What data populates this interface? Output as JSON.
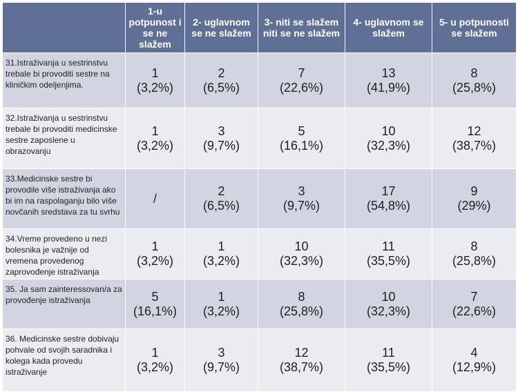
{
  "headers": [
    "",
    "1-u potpunost i se ne slažem",
    "2- uglavnom se ne slažem",
    "3- niti se slažem niti se ne slažem",
    "4- uglavnom se slažem",
    "5- u potpunosti se slažem"
  ],
  "rows": [
    {
      "question": "31.Istraživanja u sestrinstvu trebale bi provoditi sestre na kliničkim odeljenjima.",
      "cells": [
        {
          "count": "1",
          "pct": "(3,2%)"
        },
        {
          "count": "2",
          "pct": "(6,5%)"
        },
        {
          "count": "7",
          "pct": "(22,6%)"
        },
        {
          "count": "13",
          "pct": "(41,9%)"
        },
        {
          "count": "8",
          "pct": "(25,8%)"
        }
      ]
    },
    {
      "question": "32.Istraživanja u sestrinstvu trebale bi provoditi medicinske sestre zaposlene u obrazovanju",
      "cells": [
        {
          "count": "1",
          "pct": "(3,2%)"
        },
        {
          "count": "3",
          "pct": "(9,7%)"
        },
        {
          "count": "5",
          "pct": "(16,1%)"
        },
        {
          "count": "10",
          "pct": "(32,3%)"
        },
        {
          "count": "12",
          "pct": "(38,7%)"
        }
      ]
    },
    {
      "question": "33.Medicinske sestre bi provodile više istraživanja ako bi im na raspolaganju bilo više novčanih sredstava za tu svrhu",
      "cells": [
        {
          "count": "/",
          "pct": ""
        },
        {
          "count": "2",
          "pct": "(6,5%)"
        },
        {
          "count": "3",
          "pct": "(9,7%)"
        },
        {
          "count": "17",
          "pct": "(54,8%)"
        },
        {
          "count": "9",
          "pct": "(29%)"
        }
      ]
    },
    {
      "question": "34.Vreme provedeno u nezi bolesnika je važnije od vremena provedenog zaprovođenje istraživanja",
      "cells": [
        {
          "count": "1",
          "pct": "(3,2%)"
        },
        {
          "count": "1",
          "pct": "(3,2%)"
        },
        {
          "count": "10",
          "pct": "(32,3%)"
        },
        {
          "count": "11",
          "pct": "(35,5%)"
        },
        {
          "count": "8",
          "pct": "(25,8%)"
        }
      ]
    },
    {
      "question": "35. Ja sam zainteressovan/a za provođenje istraživanja",
      "cells": [
        {
          "count": "5",
          "pct": "(16,1%)"
        },
        {
          "count": "1",
          "pct": "(3,2%)"
        },
        {
          "count": "8",
          "pct": "(25,8%)"
        },
        {
          "count": "10",
          "pct": "(32,3%)"
        },
        {
          "count": "7",
          "pct": "(22,6%)"
        }
      ]
    },
    {
      "question": "36. Medicinske sestre dobivaju pohvale od svojih saradnika i kolega kada provedu istraživanje",
      "cells": [
        {
          "count": "1",
          "pct": "(3,2%)"
        },
        {
          "count": "3",
          "pct": "(9,7%)"
        },
        {
          "count": "12",
          "pct": "(38,7%)"
        },
        {
          "count": "11",
          "pct": "(35,5%)"
        },
        {
          "count": "4",
          "pct": "(12,9%)"
        }
      ]
    }
  ]
}
